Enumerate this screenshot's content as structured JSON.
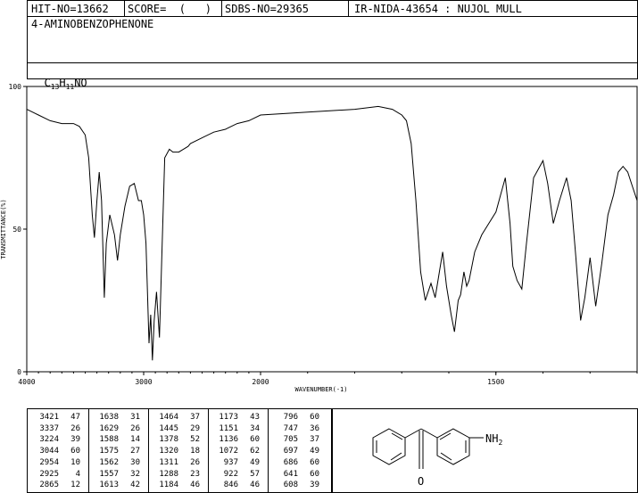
{
  "header": {
    "hit_no": "HIT-NO=13662",
    "score": "SCORE=  (   )",
    "sdbs_no": "SDBS-NO=29365",
    "ir_nida": "IR-NIDA-43654 : NUJOL MULL",
    "compound_name": "4-AMINOBENZOPHENONE",
    "formula_prefix": "C",
    "formula_c_sub": "13",
    "formula_h": "H",
    "formula_h_sub": "11",
    "formula_rest": "NO"
  },
  "chart_data": {
    "type": "line",
    "xlabel": "WAVENUMBER(-1)",
    "ylabel": "TRANSMITTANCE(%)",
    "xlim": [
      4000,
      400
    ],
    "ylim": [
      0,
      100
    ],
    "x_ticks": [
      "4000",
      "3000",
      "2000",
      "1500",
      "1000",
      "500"
    ],
    "y_ticks": [
      "100",
      "50",
      "0"
    ],
    "series": [
      {
        "points": [
          [
            4000,
            92
          ],
          [
            3900,
            90
          ],
          [
            3800,
            88
          ],
          [
            3700,
            87
          ],
          [
            3600,
            87
          ],
          [
            3550,
            86
          ],
          [
            3500,
            83
          ],
          [
            3470,
            75
          ],
          [
            3440,
            55
          ],
          [
            3421,
            47
          ],
          [
            3400,
            60
          ],
          [
            3380,
            70
          ],
          [
            3360,
            60
          ],
          [
            3337,
            26
          ],
          [
            3320,
            45
          ],
          [
            3290,
            55
          ],
          [
            3250,
            48
          ],
          [
            3224,
            39
          ],
          [
            3200,
            48
          ],
          [
            3160,
            58
          ],
          [
            3120,
            65
          ],
          [
            3080,
            66
          ],
          [
            3044,
            60
          ],
          [
            3020,
            60
          ],
          [
            3000,
            55
          ],
          [
            2980,
            45
          ],
          [
            2954,
            10
          ],
          [
            2940,
            20
          ],
          [
            2925,
            4
          ],
          [
            2910,
            18
          ],
          [
            2890,
            28
          ],
          [
            2865,
            12
          ],
          [
            2845,
            40
          ],
          [
            2820,
            75
          ],
          [
            2780,
            78
          ],
          [
            2750,
            77
          ],
          [
            2700,
            77
          ],
          [
            2660,
            78
          ],
          [
            2620,
            79
          ],
          [
            2600,
            80
          ],
          [
            2500,
            82
          ],
          [
            2400,
            84
          ],
          [
            2300,
            85
          ],
          [
            2200,
            87
          ],
          [
            2100,
            88
          ],
          [
            2000,
            90
          ],
          [
            1900,
            91
          ],
          [
            1800,
            92
          ],
          [
            1750,
            93
          ],
          [
            1720,
            92
          ],
          [
            1700,
            90
          ],
          [
            1690,
            88
          ],
          [
            1680,
            80
          ],
          [
            1670,
            60
          ],
          [
            1660,
            35
          ],
          [
            1650,
            25
          ],
          [
            1638,
            31
          ],
          [
            1629,
            26
          ],
          [
            1620,
            35
          ],
          [
            1613,
            42
          ],
          [
            1605,
            30
          ],
          [
            1595,
            20
          ],
          [
            1588,
            14
          ],
          [
            1580,
            25
          ],
          [
            1575,
            27
          ],
          [
            1568,
            35
          ],
          [
            1562,
            30
          ],
          [
            1557,
            32
          ],
          [
            1545,
            42
          ],
          [
            1530,
            48
          ],
          [
            1515,
            52
          ],
          [
            1500,
            56
          ],
          [
            1490,
            62
          ],
          [
            1480,
            68
          ],
          [
            1470,
            52
          ],
          [
            1464,
            37
          ],
          [
            1455,
            32
          ],
          [
            1445,
            29
          ],
          [
            1435,
            45
          ],
          [
            1420,
            68
          ],
          [
            1400,
            74
          ],
          [
            1390,
            66
          ],
          [
            1378,
            52
          ],
          [
            1365,
            60
          ],
          [
            1350,
            68
          ],
          [
            1340,
            60
          ],
          [
            1330,
            40
          ],
          [
            1320,
            18
          ],
          [
            1311,
            26
          ],
          [
            1300,
            40
          ],
          [
            1288,
            23
          ],
          [
            1275,
            38
          ],
          [
            1262,
            55
          ],
          [
            1250,
            62
          ],
          [
            1240,
            70
          ],
          [
            1230,
            72
          ],
          [
            1220,
            70
          ],
          [
            1210,
            65
          ],
          [
            1200,
            60
          ],
          [
            1192,
            55
          ],
          [
            1184,
            46
          ],
          [
            1178,
            50
          ],
          [
            1173,
            43
          ],
          [
            1165,
            60
          ],
          [
            1158,
            58
          ],
          [
            1151,
            34
          ],
          [
            1145,
            55
          ],
          [
            1136,
            60
          ],
          [
            1125,
            72
          ],
          [
            1100,
            78
          ],
          [
            1080,
            75
          ],
          [
            1072,
            62
          ],
          [
            1060,
            78
          ],
          [
            1040,
            80
          ],
          [
            1020,
            82
          ],
          [
            1000,
            82
          ],
          [
            980,
            80
          ],
          [
            960,
            82
          ],
          [
            950,
            78
          ],
          [
            937,
            49
          ],
          [
            925,
            70
          ],
          [
            922,
            57
          ],
          [
            915,
            75
          ],
          [
            900,
            84
          ],
          [
            880,
            86
          ],
          [
            860,
            85
          ],
          [
            846,
            46
          ],
          [
            835,
            75
          ],
          [
            820,
            84
          ],
          [
            805,
            82
          ],
          [
            796,
            60
          ],
          [
            785,
            80
          ],
          [
            770,
            86
          ],
          [
            760,
            84
          ],
          [
            747,
            36
          ],
          [
            735,
            75
          ],
          [
            720,
            86
          ],
          [
            712,
            84
          ],
          [
            705,
            37
          ],
          [
            700,
            60
          ],
          [
            697,
            49
          ],
          [
            690,
            58
          ],
          [
            686,
            60
          ],
          [
            675,
            75
          ],
          [
            660,
            86
          ],
          [
            650,
            80
          ],
          [
            641,
            60
          ],
          [
            630,
            75
          ],
          [
            620,
            80
          ],
          [
            608,
            39
          ],
          [
            600,
            65
          ],
          [
            590,
            80
          ],
          [
            560,
            84
          ],
          [
            540,
            86
          ],
          [
            520,
            80
          ],
          [
            505,
            68
          ],
          [
            495,
            72
          ],
          [
            480,
            88
          ],
          [
            460,
            94
          ],
          [
            440,
            90
          ],
          [
            420,
            87
          ],
          [
            400,
            87
          ]
        ]
      }
    ]
  },
  "peak_table": [
    [
      [
        "3421",
        "47"
      ],
      [
        "3337",
        "26"
      ],
      [
        "3224",
        "39"
      ],
      [
        "3044",
        "60"
      ],
      [
        "2954",
        "10"
      ],
      [
        "2925",
        "4"
      ],
      [
        "2865",
        "12"
      ]
    ],
    [
      [
        "1638",
        "31"
      ],
      [
        "1629",
        "26"
      ],
      [
        "1588",
        "14"
      ],
      [
        "1575",
        "27"
      ],
      [
        "1562",
        "30"
      ],
      [
        "1557",
        "32"
      ],
      [
        "1613",
        "42"
      ]
    ],
    [
      [
        "1464",
        "37"
      ],
      [
        "1445",
        "29"
      ],
      [
        "1378",
        "52"
      ],
      [
        "1320",
        "18"
      ],
      [
        "1311",
        "26"
      ],
      [
        "1288",
        "23"
      ],
      [
        "1184",
        "46"
      ]
    ],
    [
      [
        "1173",
        "43"
      ],
      [
        "1151",
        "34"
      ],
      [
        "1136",
        "60"
      ],
      [
        "1072",
        "62"
      ],
      [
        "937",
        "49"
      ],
      [
        "922",
        "57"
      ],
      [
        "846",
        "46"
      ]
    ],
    [
      [
        "796",
        "60"
      ],
      [
        "747",
        "36"
      ],
      [
        "705",
        "37"
      ],
      [
        "697",
        "49"
      ],
      [
        "686",
        "60"
      ],
      [
        "641",
        "60"
      ],
      [
        "608",
        "39"
      ]
    ]
  ],
  "structure": {
    "carbonyl_o": "O",
    "amine_n": "NH",
    "amine_sub": "2"
  }
}
